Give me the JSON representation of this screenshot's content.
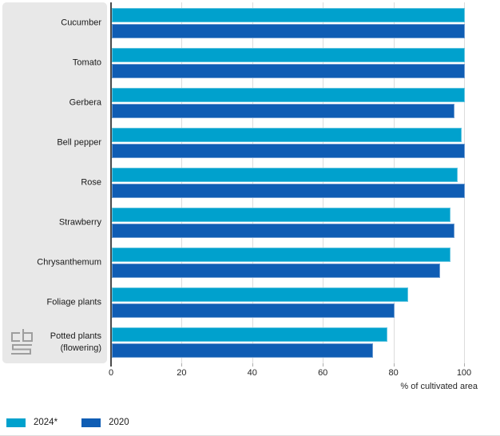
{
  "chart_data": {
    "type": "bar",
    "orientation": "horizontal",
    "categories": [
      "Cucumber",
      "Tomato",
      "Gerbera",
      "Bell pepper",
      "Rose",
      "Strawberry",
      "Chrysanthemum",
      "Foliage plants",
      "Potted plants (flowering)"
    ],
    "series": [
      {
        "name": "2024*",
        "color": "#00a1cd",
        "values": [
          100,
          100,
          100,
          99,
          98,
          96,
          96,
          84,
          78
        ]
      },
      {
        "name": "2020",
        "color": "#0f5db4",
        "values": [
          100,
          100,
          97,
          100,
          100,
          97,
          93,
          80,
          74
        ]
      }
    ],
    "xlabel": "% of cultivated area",
    "xlim": [
      0,
      100
    ],
    "xticks": [
      0,
      20,
      40,
      60,
      80,
      100
    ],
    "grid": "vertical",
    "legend_position": "bottom-left"
  },
  "legend": {
    "items": [
      {
        "label": "2024*",
        "color": "#00a1cd"
      },
      {
        "label": "2020",
        "color": "#0f5db4"
      }
    ]
  },
  "branding": {
    "logo_name": "cbs-logo",
    "logo_color": "#9e9e9e"
  },
  "style_colors": {
    "panel_bg": "#e8e8e8",
    "gridline": "#dcdcdc",
    "axis_line": "#4a4a4a",
    "text": "#1a1a1a"
  }
}
